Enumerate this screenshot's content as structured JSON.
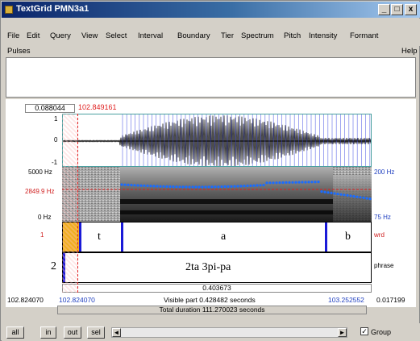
{
  "window": {
    "title": "TextGrid PMN3a1"
  },
  "title_buttons": {
    "minimize": "_",
    "maximize": "□",
    "close": "x"
  },
  "menus": {
    "row1": [
      "File",
      "Edit",
      "Query",
      "View",
      "Select",
      "Interval",
      "Boundary",
      "Tier",
      "Spectrum",
      "Pitch",
      "Intensity",
      "Formant"
    ],
    "row2_left": "Pulses",
    "row2_right": "Help"
  },
  "editor": {
    "left_time_box": "0.088044",
    "cursor_time": "102.849161",
    "sound_axis": {
      "top": "1",
      "zero": "0",
      "bottom": "-1"
    },
    "spectrogram_axis": {
      "top": "5000 Hz",
      "cursor_freq": "2849.9 Hz",
      "bottom": "0 Hz"
    },
    "pitch_axis": {
      "top": "200 Hz",
      "bottom": "75 Hz"
    },
    "tier1": {
      "name": "wrd",
      "label_left": "1",
      "intervals": [
        "t",
        "a",
        "b"
      ]
    },
    "tier2": {
      "number": "2",
      "name": "phrase",
      "text": "2ta 3pi-pa"
    },
    "selection_duration": "0.403673",
    "times": {
      "window_start": "102.824070",
      "visible_start": "102.824070",
      "visible_part": "Visible part 0.428482 seconds",
      "visible_end": "103.252552",
      "right_value": "0.017199"
    },
    "total_duration": "Total duration 111.270023 seconds"
  },
  "bottom": {
    "buttons": [
      "all",
      "in",
      "out",
      "sel"
    ],
    "scroll_left": "◄",
    "scroll_right": "►",
    "group_label": "Group",
    "group_checked": "✓"
  },
  "colors": {
    "boundary": "#1a1ad8",
    "cursor": "#e02020",
    "selection": "#f0b020",
    "pitch": "#1a6cff"
  }
}
